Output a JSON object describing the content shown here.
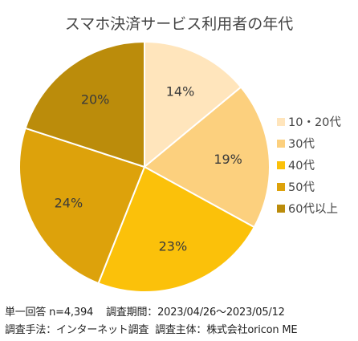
{
  "chart_data": {
    "type": "pie",
    "title": "スマホ決済サービス利用者の年代",
    "categories": [
      "10・20代",
      "30代",
      "40代",
      "50代",
      "60代以上"
    ],
    "values": [
      14,
      19,
      23,
      24,
      20
    ],
    "value_labels": [
      "14%",
      "19%",
      "23%",
      "24%",
      "20%"
    ],
    "colors": [
      "#FFE5BC",
      "#FCD07E",
      "#FBC10A",
      "#DDA20B",
      "#BB8C0B"
    ],
    "legend_position": "right",
    "start_angle": "top",
    "direction": "clockwise"
  },
  "footnotes": {
    "sample": "単一回答 n=4,394",
    "period": "調査期間：2023/04/26～2023/05/12",
    "method": "調査手法：インターネット調査",
    "sponsor": "調査主体：株式会社oricon ME"
  }
}
